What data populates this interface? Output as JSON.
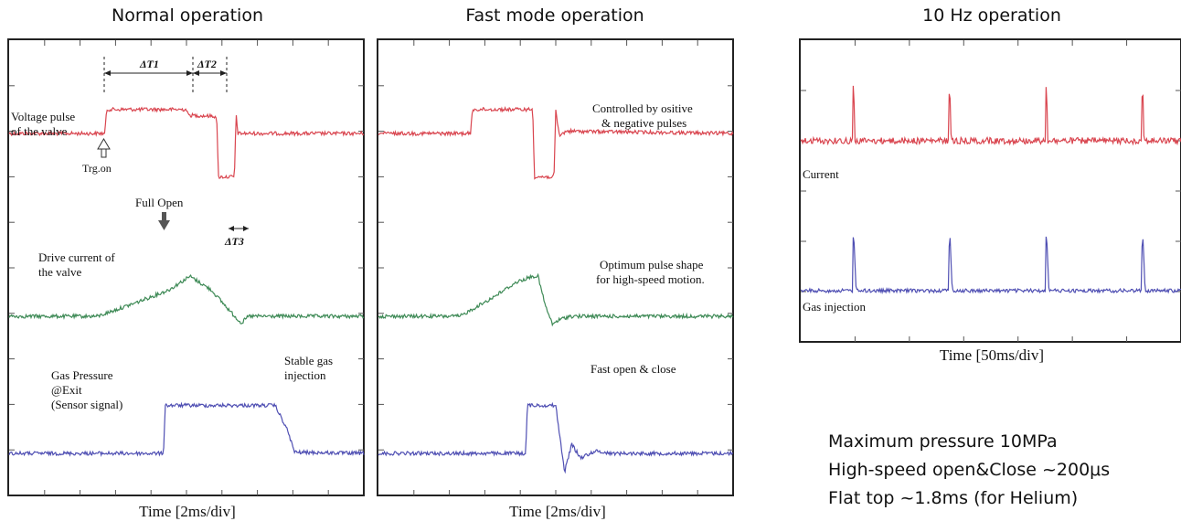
{
  "panels": [
    {
      "title": "Normal operation",
      "xlabel": "Time [2ms/div]"
    },
    {
      "title": "Fast mode operation",
      "xlabel": "Time [2ms/div]"
    },
    {
      "title": "10 Hz operation",
      "xlabel": "Time [50ms/div]"
    }
  ],
  "annotations": {
    "p1": {
      "dt1": "ΔT1",
      "dt2": "ΔT2",
      "dt3": "ΔT3",
      "voltage_l1": "Voltage pulse",
      "voltage_l2": "of the valve",
      "trg": "Trg.on",
      "full_open": "Full Open",
      "drive_l1": "Drive current of",
      "drive_l2": "the valve",
      "gas_l1": "Gas Pressure",
      "gas_l2": "@Exit",
      "gas_l3": "(Sensor signal)",
      "stable_l1": "Stable gas",
      "stable_l2": "injection"
    },
    "p2": {
      "ctrl_l1": "Controlled by ositive",
      "ctrl_l2": "& negative pulses",
      "opt_l1": "Optimum pulse shape",
      "opt_l2": "for high-speed motion.",
      "fast": "Fast open & close"
    },
    "p3": {
      "current": "Current",
      "gas": "Gas injection"
    }
  },
  "specs": [
    "Maximum pressure 10MPa",
    "High-speed open&Close ~200μs",
    "Flat top ~1.8ms (for Helium)"
  ],
  "colors": {
    "voltage": "#d9454f",
    "current": "#3e8a56",
    "gas": "#4f4fb3",
    "frame": "#222222",
    "tick": "#555555"
  },
  "chart_data": [
    {
      "type": "line",
      "title": "Normal operation",
      "xlabel": "Time [2ms/div]",
      "ylabel": "",
      "xlim": [
        0,
        10
      ],
      "series": [
        {
          "values": [
            [
              0,
              0
            ],
            [
              2.7,
              0
            ],
            [
              2.75,
              1.05
            ],
            [
              5.0,
              1.05
            ],
            [
              5.05,
              0.8
            ],
            [
              5.85,
              0.75
            ],
            [
              5.9,
              -1.9
            ],
            [
              6.35,
              -1.9
            ],
            [
              6.4,
              0.85
            ],
            [
              6.45,
              0
            ],
            [
              10,
              0
            ]
          ]
        },
        {
          "values": [
            [
              0,
              0
            ],
            [
              2.5,
              0
            ],
            [
              3.5,
              0.55
            ],
            [
              4.5,
              1.15
            ],
            [
              5.1,
              1.75
            ],
            [
              5.7,
              1.15
            ],
            [
              6.3,
              0.1
            ],
            [
              6.55,
              -0.3
            ],
            [
              6.75,
              0
            ],
            [
              10,
              0
            ]
          ]
        },
        {
          "values": [
            [
              0,
              0
            ],
            [
              4.35,
              0
            ],
            [
              4.4,
              2.1
            ],
            [
              7.5,
              2.1
            ],
            [
              7.85,
              1.0
            ],
            [
              8.05,
              0.05
            ],
            [
              10,
              0
            ]
          ]
        }
      ]
    },
    {
      "type": "line",
      "title": "Fast mode operation",
      "xlabel": "Time [2ms/div]",
      "ylabel": "",
      "xlim": [
        0,
        10
      ],
      "series": [
        {
          "values": [
            [
              0,
              0
            ],
            [
              2.6,
              0
            ],
            [
              2.65,
              1.05
            ],
            [
              4.35,
              1.05
            ],
            [
              4.4,
              -1.9
            ],
            [
              4.95,
              -1.9
            ],
            [
              5.0,
              1.0
            ],
            [
              5.1,
              -0.1
            ],
            [
              5.3,
              0.1
            ],
            [
              10,
              0
            ]
          ]
        },
        {
          "values": [
            [
              0,
              0
            ],
            [
              2.3,
              0
            ],
            [
              3.2,
              0.8
            ],
            [
              3.9,
              1.5
            ],
            [
              4.35,
              1.75
            ],
            [
              4.5,
              1.75
            ],
            [
              4.7,
              0.5
            ],
            [
              4.9,
              -0.35
            ],
            [
              5.1,
              -0.15
            ],
            [
              5.4,
              0
            ],
            [
              10,
              0
            ]
          ]
        },
        {
          "values": [
            [
              0,
              0
            ],
            [
              4.15,
              0
            ],
            [
              4.2,
              2.1
            ],
            [
              5.0,
              2.1
            ],
            [
              5.1,
              0.9
            ],
            [
              5.25,
              -0.8
            ],
            [
              5.45,
              0.4
            ],
            [
              5.7,
              -0.2
            ],
            [
              6.1,
              0.1
            ],
            [
              6.6,
              0
            ],
            [
              10,
              0
            ]
          ]
        }
      ]
    },
    {
      "type": "line",
      "title": "10 Hz operation",
      "xlabel": "Time [50ms/div]",
      "ylabel": "",
      "xlim": [
        0,
        7
      ],
      "series": [
        {
          "name": "Current",
          "values": [
            [
              0,
              0
            ],
            [
              0.95,
              0
            ],
            [
              0.97,
              1.8
            ],
            [
              1.0,
              0
            ],
            [
              2.72,
              0
            ],
            [
              2.74,
              1.8
            ],
            [
              2.77,
              0
            ],
            [
              4.5,
              0
            ],
            [
              4.52,
              1.8
            ],
            [
              4.55,
              0
            ],
            [
              6.27,
              0
            ],
            [
              6.29,
              1.8
            ],
            [
              6.32,
              0
            ],
            [
              7,
              0
            ]
          ]
        },
        {
          "name": "Gas injection",
          "values": [
            [
              0,
              0
            ],
            [
              0.95,
              0
            ],
            [
              0.97,
              1.8
            ],
            [
              1.02,
              0
            ],
            [
              2.72,
              0
            ],
            [
              2.74,
              1.8
            ],
            [
              2.79,
              0
            ],
            [
              4.5,
              0
            ],
            [
              4.52,
              1.8
            ],
            [
              4.57,
              0
            ],
            [
              6.27,
              0
            ],
            [
              6.29,
              1.8
            ],
            [
              6.34,
              0
            ],
            [
              7,
              0
            ]
          ]
        }
      ]
    }
  ]
}
